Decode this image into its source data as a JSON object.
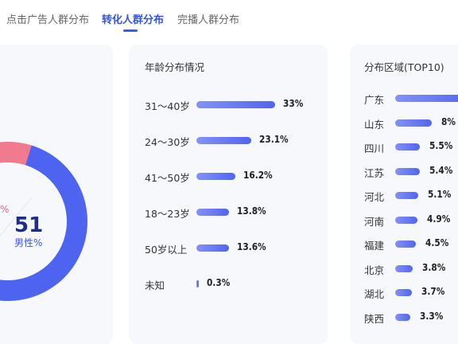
{
  "tabs": [
    {
      "label": "点击广告人群分布",
      "active": false
    },
    {
      "label": "转化人群分布",
      "active": true
    },
    {
      "label": "完播人群分布",
      "active": false
    }
  ],
  "gender_chart": {
    "male_value": "51",
    "male_label": "男性%",
    "female_partial_label": "%",
    "colors": {
      "male": "#4e63f0",
      "female": "#f27a8e",
      "track": "#e8ebf5"
    }
  },
  "age": {
    "title": "年龄分布情况",
    "bar_color": "#5a6ef1",
    "items": [
      {
        "label": "31～40岁",
        "value": 33,
        "display": "33%"
      },
      {
        "label": "24～30岁",
        "value": 23.1,
        "display": "23.1%"
      },
      {
        "label": "41～50岁",
        "value": 16.2,
        "display": "16.2%"
      },
      {
        "label": "18～23岁",
        "value": 13.8,
        "display": "13.8%"
      },
      {
        "label": "50岁以上",
        "value": 13.6,
        "display": "13.6%"
      },
      {
        "label": "未知",
        "value": 0.3,
        "display": "0.3%"
      }
    ]
  },
  "region": {
    "title": "分布区域(TOP10)",
    "bar_color": "#5a6ef1",
    "items": [
      {
        "label": "广东",
        "value": null,
        "display": ""
      },
      {
        "label": "山东",
        "value": 8,
        "display": "8%"
      },
      {
        "label": "四川",
        "value": 5.5,
        "display": "5.5%"
      },
      {
        "label": "江苏",
        "value": 5.4,
        "display": "5.4%"
      },
      {
        "label": "河北",
        "value": 5.1,
        "display": "5.1%"
      },
      {
        "label": "河南",
        "value": 4.9,
        "display": "4.9%"
      },
      {
        "label": "福建",
        "value": 4.5,
        "display": "4.5%"
      },
      {
        "label": "北京",
        "value": 3.8,
        "display": "3.8%"
      },
      {
        "label": "湖北",
        "value": 3.7,
        "display": "3.7%"
      },
      {
        "label": "陕西",
        "value": 3.3,
        "display": "3.3%"
      }
    ]
  }
}
